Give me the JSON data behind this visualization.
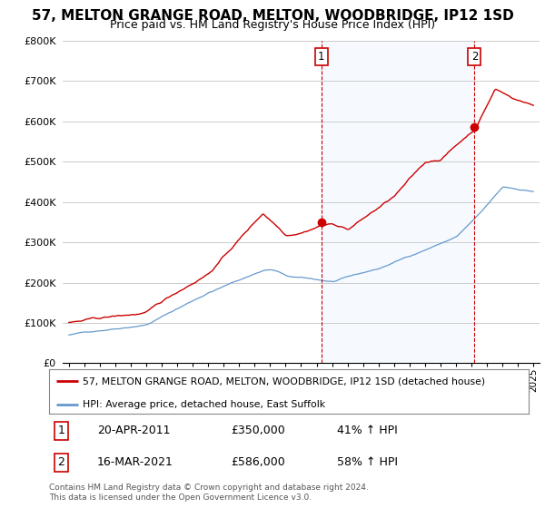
{
  "title": "57, MELTON GRANGE ROAD, MELTON, WOODBRIDGE, IP12 1SD",
  "subtitle": "Price paid vs. HM Land Registry's House Price Index (HPI)",
  "ylim": [
    0,
    800000
  ],
  "yticks": [
    0,
    100000,
    200000,
    300000,
    400000,
    500000,
    600000,
    700000,
    800000
  ],
  "ytick_labels": [
    "£0",
    "£100K",
    "£200K",
    "£300K",
    "£400K",
    "£500K",
    "£600K",
    "£700K",
    "£800K"
  ],
  "line1_color": "#cc0000",
  "line2_color": "#6699cc",
  "vline_color": "#cc0000",
  "shade_color": "#ddeeff",
  "sale1_x": 2011.3,
  "sale1_y": 350000,
  "sale1_label": "1",
  "sale2_x": 2021.2,
  "sale2_y": 586000,
  "sale2_label": "2",
  "background_color": "#ffffff",
  "grid_color": "#cccccc",
  "legend_line1": "57, MELTON GRANGE ROAD, MELTON, WOODBRIDGE, IP12 1SD (detached house)",
  "legend_line2": "HPI: Average price, detached house, East Suffolk",
  "table_row1": [
    "1",
    "20-APR-2011",
    "£350,000",
    "41% ↑ HPI"
  ],
  "table_row2": [
    "2",
    "16-MAR-2021",
    "£586,000",
    "58% ↑ HPI"
  ],
  "footer": "Contains HM Land Registry data © Crown copyright and database right 2024.\nThis data is licensed under the Open Government Licence v3.0.",
  "title_fontsize": 11,
  "subtitle_fontsize": 9,
  "tick_fontsize": 8,
  "xlim_left": 1994.6,
  "xlim_right": 2025.4
}
